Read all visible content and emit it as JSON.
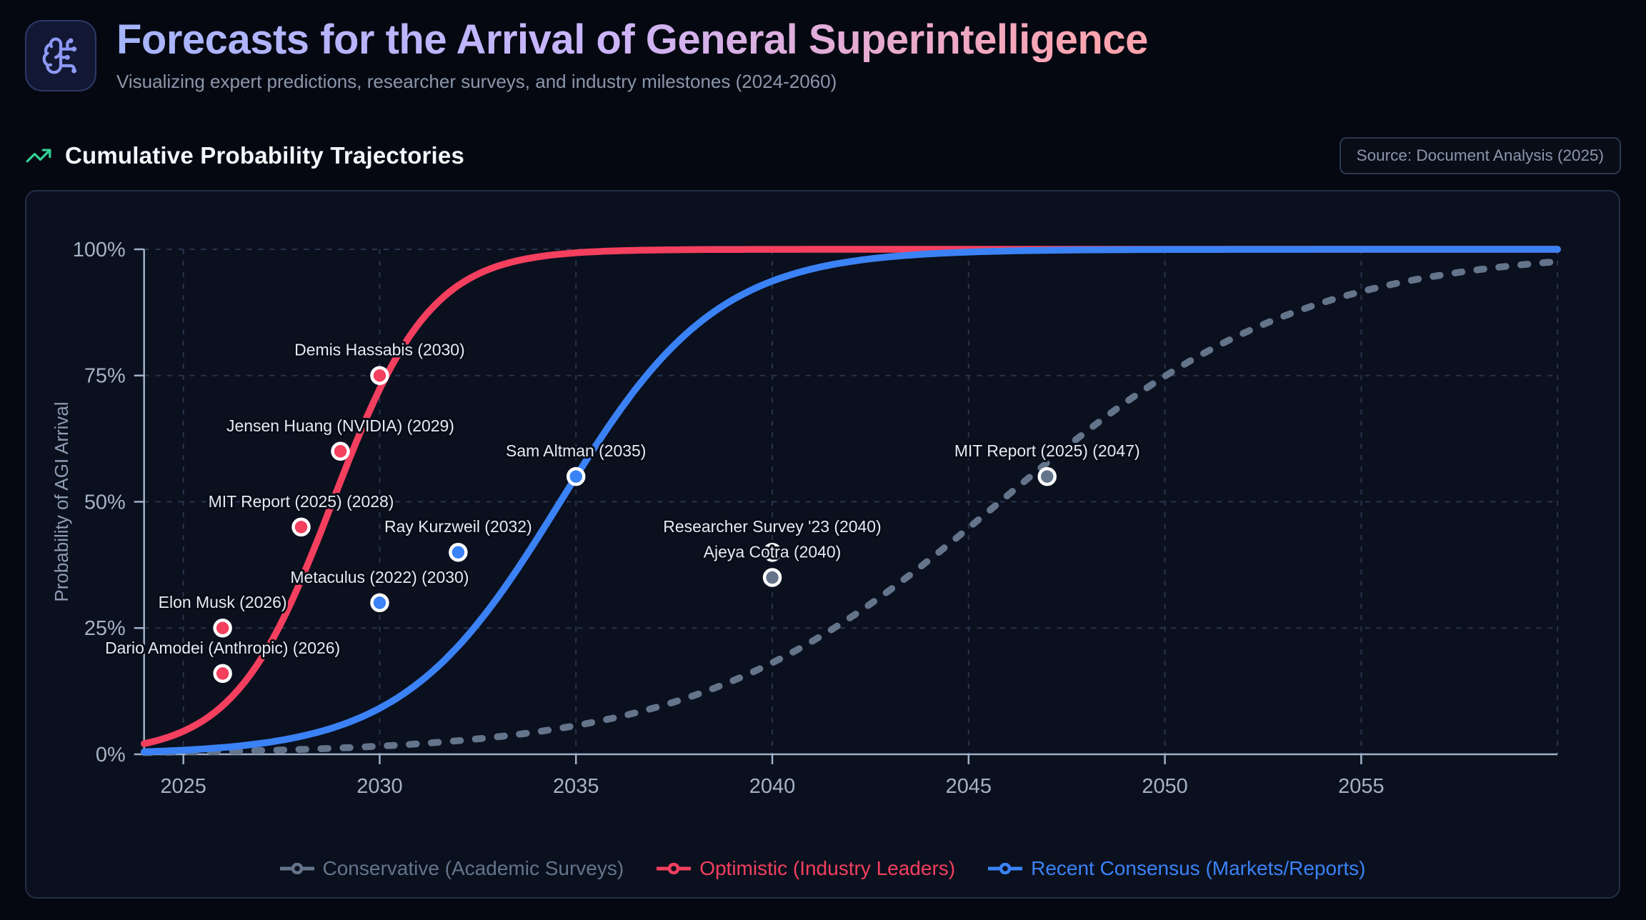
{
  "header": {
    "title": "Forecasts for the Arrival of General Superintelligence",
    "subtitle": "Visualizing expert predictions, researcher surveys, and industry milestones (2024-2060)",
    "icon": "brain-circuit-icon"
  },
  "section": {
    "title": "Cumulative Probability Trajectories",
    "icon": "trending-up-icon",
    "source_badge": "Source: Document Analysis (2025)"
  },
  "colors": {
    "page_background": "#050811",
    "card_background": "#0a101e",
    "card_border": "#232e46",
    "conservative": "#64748b",
    "optimistic": "#f43f5e",
    "recent_consensus": "#3b82f6",
    "axis_line": "#9fb0c7",
    "grid_line": "#2f3b55",
    "tick_label": "#a6b2c5",
    "point_label": "#e5eaf2",
    "section_icon_green": "#34d399",
    "header_icon_indigo": "#8e98f5"
  },
  "chart_data": {
    "type": "line",
    "title": "Cumulative Probability Trajectories",
    "xlabel": "",
    "ylabel": "Probability of AGI Arrival",
    "x_range": [
      2024,
      2060
    ],
    "y_range": [
      0,
      100
    ],
    "x_ticks": [
      2025,
      2030,
      2035,
      2040,
      2045,
      2050,
      2055
    ],
    "x_gridlines": [
      2025,
      2030,
      2035,
      2040,
      2045,
      2050,
      2055,
      2060
    ],
    "y_ticks": [
      0,
      25,
      50,
      75,
      100
    ],
    "y_tick_suffix": "%",
    "grid": "dashed",
    "legend_position": "bottom",
    "series": [
      {
        "id": "conservative",
        "name": "Conservative (Academic Surveys)",
        "color": "#64748b",
        "line_style": "dashed",
        "curve": "logistic",
        "logistic": {
          "midpoint": 2045.8,
          "steepness": 0.26
        },
        "values_at_ticks": {
          "2025": 0.4,
          "2030": 1.6,
          "2035": 5.7,
          "2040": 18.1,
          "2045": 44.8,
          "2050": 74.9,
          "2055": 91.6,
          "2060": 97.6
        }
      },
      {
        "id": "optimistic",
        "name": "Optimistic (Industry Leaders)",
        "color": "#f43f5e",
        "line_style": "solid",
        "curve": "logistic",
        "logistic": {
          "midpoint": 2028.8,
          "steepness": 0.8
        },
        "values_at_ticks": {
          "2025": 4.6,
          "2030": 72.3,
          "2035": 99.3,
          "2040": 100,
          "2045": 100,
          "2050": 100,
          "2055": 100,
          "2060": 100
        }
      },
      {
        "id": "recent",
        "name": "Recent Consensus (Markets/Reports)",
        "color": "#3b82f6",
        "line_style": "solid",
        "curve": "logistic",
        "logistic": {
          "midpoint": 2034.6,
          "steepness": 0.5
        },
        "values_at_ticks": {
          "2025": 0.8,
          "2030": 9.1,
          "2035": 55.0,
          "2040": 93.7,
          "2045": 99.5,
          "2050": 100,
          "2055": 100,
          "2060": 100
        }
      }
    ],
    "points": [
      {
        "label": "Dario Amodei (Anthropic) (2026)",
        "year": 2026,
        "probability": 16,
        "series": "optimistic"
      },
      {
        "label": "Elon Musk (2026)",
        "year": 2026,
        "probability": 25,
        "series": "optimistic"
      },
      {
        "label": "MIT Report (2025) (2028)",
        "year": 2028,
        "probability": 45,
        "series": "optimistic"
      },
      {
        "label": "Jensen Huang (NVIDIA) (2029)",
        "year": 2029,
        "probability": 60,
        "series": "optimistic"
      },
      {
        "label": "Demis Hassabis (2030)",
        "year": 2030,
        "probability": 75,
        "series": "optimistic"
      },
      {
        "label": "Metaculus (2022) (2030)",
        "year": 2030,
        "probability": 30,
        "series": "recent"
      },
      {
        "label": "Ray Kurzweil (2032)",
        "year": 2032,
        "probability": 40,
        "series": "recent"
      },
      {
        "label": "Sam Altman (2035)",
        "year": 2035,
        "probability": 55,
        "series": "recent"
      },
      {
        "label": "Researcher Survey '23 (2040)",
        "year": 2040,
        "probability": 40,
        "series": "conservative"
      },
      {
        "label": "Ajeya Cotra (2040)",
        "year": 2040,
        "probability": 35,
        "series": "conservative"
      },
      {
        "label": "MIT Report (2025) (2047)",
        "year": 2047,
        "probability": 55,
        "series": "conservative"
      }
    ]
  }
}
